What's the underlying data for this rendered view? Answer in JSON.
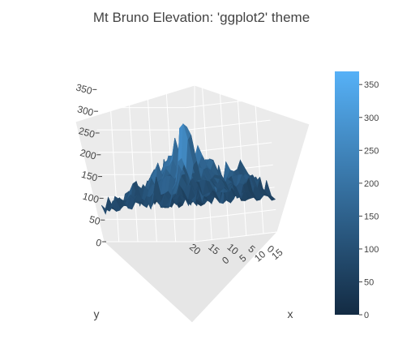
{
  "chart_data": {
    "type": "surface",
    "title": "Mt Bruno Elevation: 'ggplot2' theme",
    "xlabel": "x",
    "ylabel": "y",
    "zlabel": "",
    "x_ticks": [
      "0",
      "5",
      "10",
      "15"
    ],
    "y_ticks": [
      "0",
      "5",
      "10",
      "15",
      "20"
    ],
    "z_ticks": [
      "0",
      "50",
      "100",
      "150",
      "200",
      "250",
      "300",
      "350"
    ],
    "colorbar_ticks": [
      "0",
      "50",
      "100",
      "150",
      "200",
      "250",
      "300",
      "350"
    ],
    "colorbar_range": [
      0,
      370
    ],
    "colorscale": [
      "#132b43",
      "#56b1f7"
    ],
    "xlim": [
      0,
      24
    ],
    "ylim": [
      0,
      24
    ],
    "zlim": [
      0,
      360
    ],
    "peak_elevation": 360,
    "base_elevation": 60
  }
}
